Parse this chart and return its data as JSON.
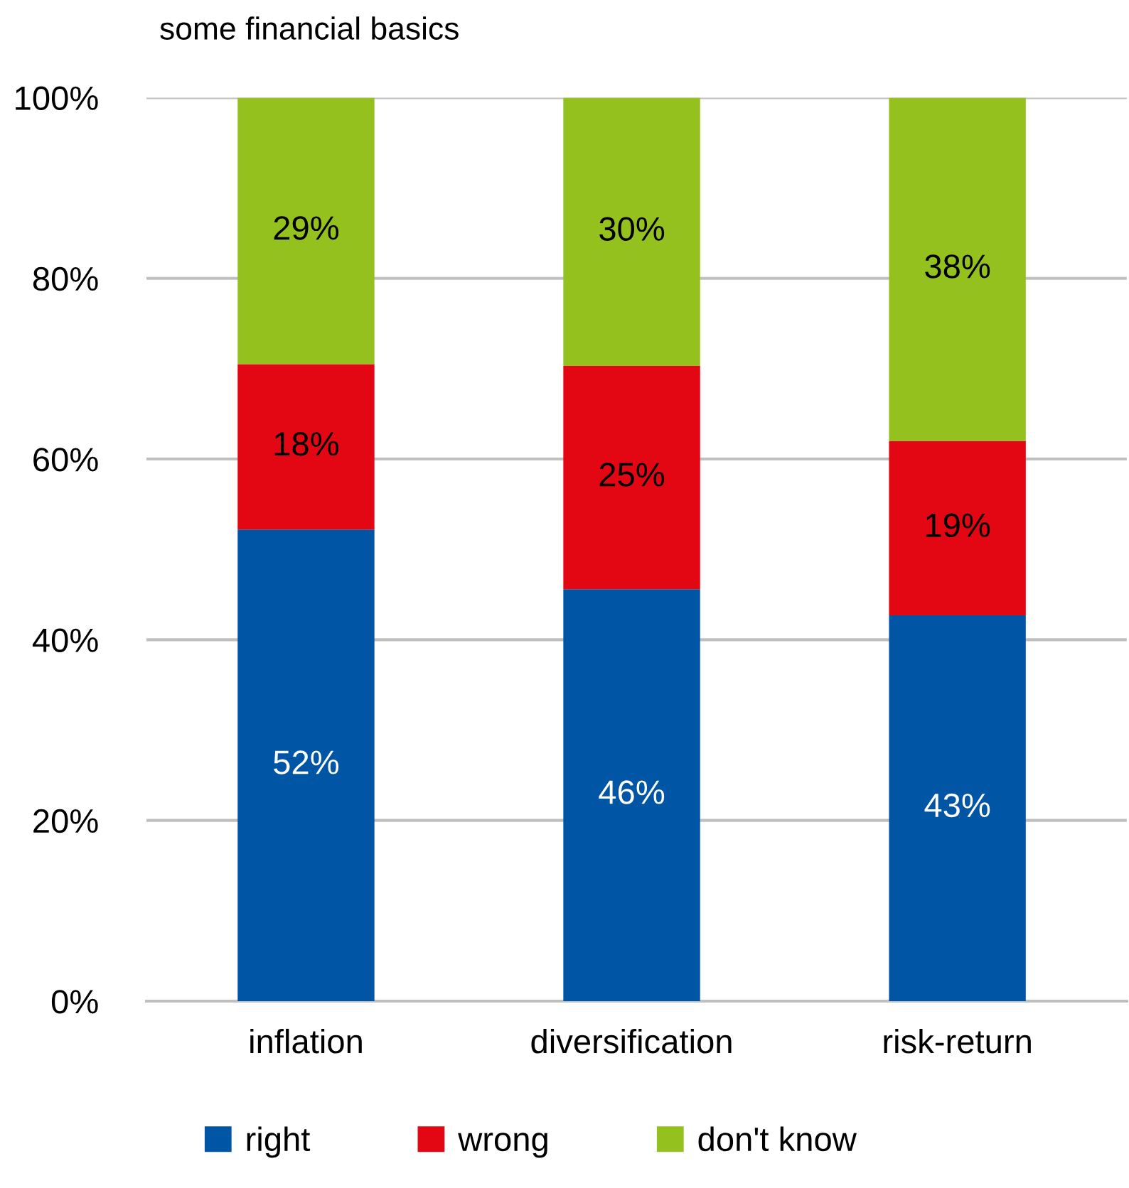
{
  "chart_data": {
    "type": "bar",
    "title": "some financial basics",
    "categories": [
      "inflation",
      "diversification",
      "risk-return"
    ],
    "stacked": true,
    "series": [
      {
        "name": "right",
        "color": "#0055a4",
        "values": [
          52.2,
          45.6,
          42.7
        ],
        "value_labels": [
          "52%",
          "46%",
          "43%"
        ]
      },
      {
        "name": "wrong",
        "color": "#e30613",
        "values": [
          18.3,
          24.7,
          19.3
        ],
        "value_labels": [
          "18%",
          "25%",
          "19%"
        ]
      },
      {
        "name": "don't know",
        "color": "#95c11f",
        "values": [
          29.5,
          29.7,
          38.0
        ],
        "value_labels": [
          "29%",
          "30%",
          "38%"
        ]
      }
    ],
    "ylim": [
      0,
      100
    ],
    "yticks": [
      {
        "value": 0,
        "label": "0%"
      },
      {
        "value": 20,
        "label": "20%"
      },
      {
        "value": 40,
        "label": "40%"
      },
      {
        "value": 60,
        "label": "60%"
      },
      {
        "value": 80,
        "label": "80%"
      },
      {
        "value": 100,
        "label": "100%"
      }
    ],
    "grid": "y",
    "legend": "bottom"
  }
}
